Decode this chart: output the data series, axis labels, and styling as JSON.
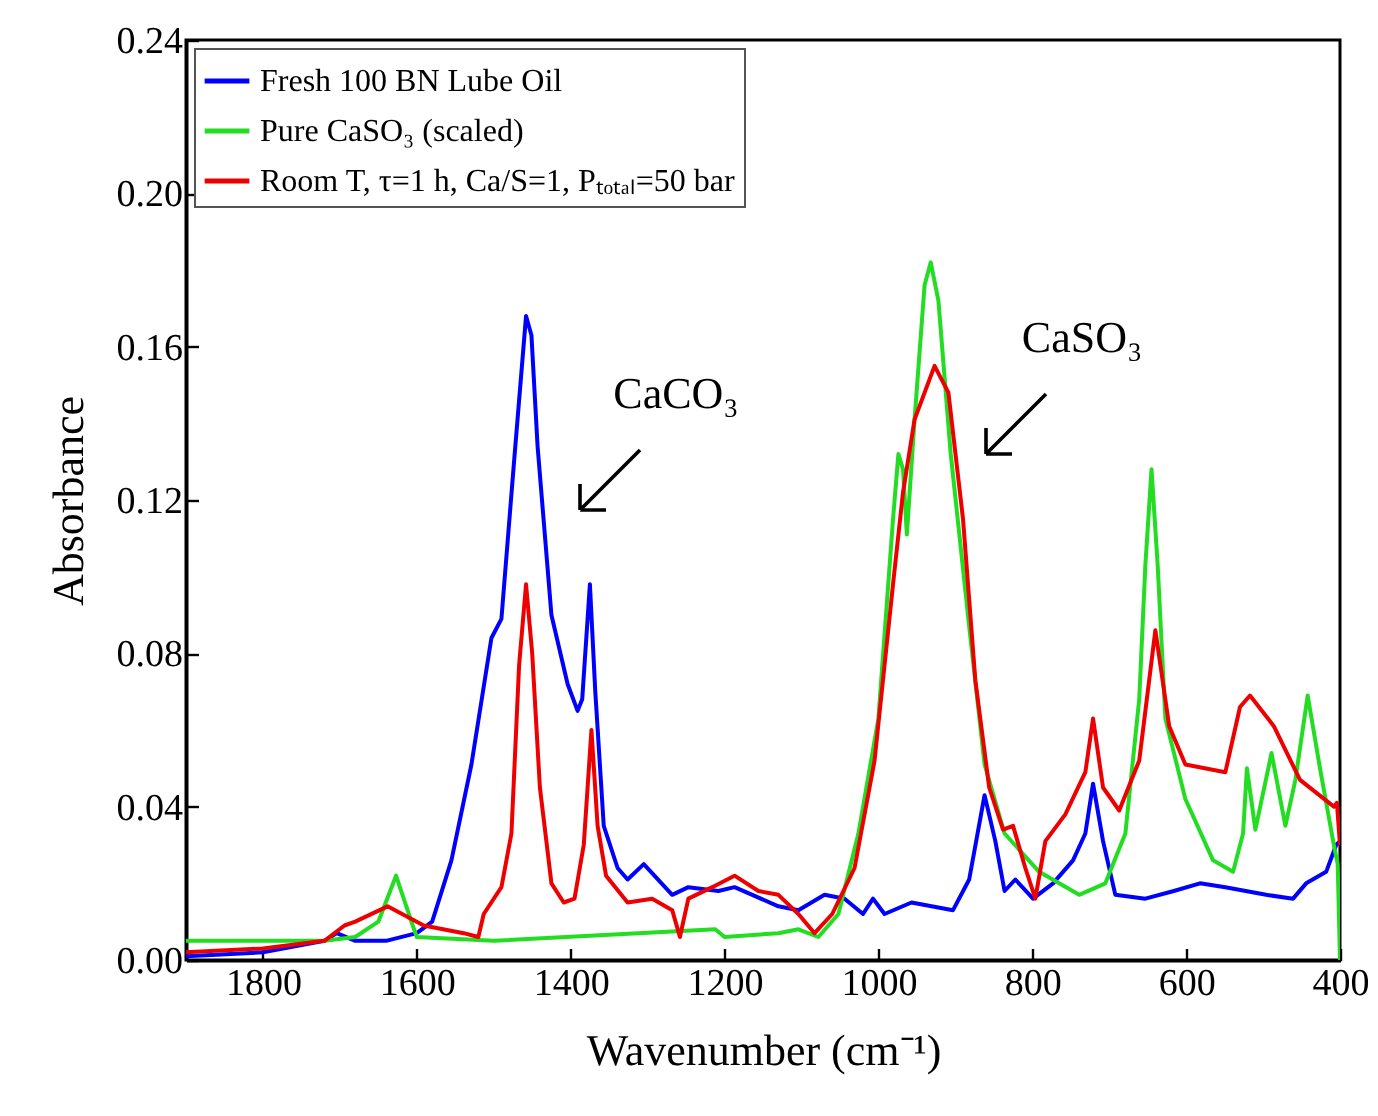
{
  "chart_data": {
    "type": "line",
    "xlabel": "Wavenumber (cm⁻¹)",
    "ylabel": "Absorbance",
    "xlim": [
      1900,
      400
    ],
    "xticks": [
      {
        "value": 1800,
        "label": "1800"
      },
      {
        "value": 1600,
        "label": "1600"
      },
      {
        "value": 1400,
        "label": "1400"
      },
      {
        "value": 1200,
        "label": "1200"
      },
      {
        "value": 1000,
        "label": "1000"
      },
      {
        "value": 800,
        "label": "800"
      },
      {
        "value": 600,
        "label": "600"
      },
      {
        "value": 400,
        "label": "400"
      }
    ],
    "ylim": [
      0,
      0.24
    ],
    "yticks": [
      {
        "value": 0,
        "label": "0.00"
      },
      {
        "value": 0.04,
        "label": "0.04"
      },
      {
        "value": 0.08,
        "label": "0.08"
      },
      {
        "value": 0.12,
        "label": "0.12"
      },
      {
        "value": 0.16,
        "label": "0.16"
      },
      {
        "value": 0.2,
        "label": "0.20"
      },
      {
        "value": 0.24,
        "label": "0.24"
      }
    ],
    "grid": false,
    "legend": "top left",
    "annotations": [
      "CaCO₃",
      "CaSO₃"
    ],
    "series": [
      {
        "name": "Fresh 100 BN Lube Oil",
        "color": "#0000ff",
        "x": [
          1900,
          1800,
          1720,
          1704,
          1680,
          1640,
          1600,
          1580,
          1555,
          1529,
          1503,
          1490,
          1474,
          1458,
          1451,
          1443,
          1425,
          1404,
          1391,
          1385,
          1375,
          1368,
          1357,
          1339,
          1326,
          1305,
          1268,
          1247,
          1208,
          1187,
          1130,
          1104,
          1070,
          1044,
          1020,
          1007,
          992,
          957,
          903,
          882,
          862,
          848,
          836,
          822,
          799,
          773,
          747,
          731,
          721,
          708,
          692,
          653,
          616,
          582,
          549,
          496,
          461,
          444,
          418,
          405,
          400
        ],
        "values": [
          0.001,
          0.002,
          0.005,
          0.007,
          0.005,
          0.005,
          0.007,
          0.01,
          0.026,
          0.051,
          0.084,
          0.089,
          0.129,
          0.168,
          0.163,
          0.134,
          0.09,
          0.072,
          0.065,
          0.068,
          0.098,
          0.07,
          0.035,
          0.024,
          0.021,
          0.025,
          0.017,
          0.019,
          0.018,
          0.019,
          0.014,
          0.013,
          0.017,
          0.016,
          0.012,
          0.016,
          0.012,
          0.015,
          0.013,
          0.021,
          0.043,
          0.031,
          0.018,
          0.021,
          0.016,
          0.02,
          0.026,
          0.033,
          0.046,
          0.031,
          0.017,
          0.016,
          0.018,
          0.02,
          0.019,
          0.017,
          0.016,
          0.02,
          0.023,
          0.03,
          0.031
        ]
      },
      {
        "name": "Pure CaSO₃ (scaled)",
        "color": "#22dd22",
        "x": [
          1900,
          1720,
          1680,
          1650,
          1627,
          1607,
          1600,
          1500,
          1212,
          1200,
          1130,
          1104,
          1078,
          1052,
          1026,
          1000,
          981,
          974,
          968,
          963,
          953,
          940,
          932,
          922,
          906,
          882,
          862,
          836,
          791,
          739,
          705,
          679,
          661,
          653,
          645,
          637,
          627,
          601,
          565,
          539,
          526,
          521,
          510,
          489,
          471,
          458,
          442,
          426,
          408,
          403,
          400
        ],
        "values": [
          0.005,
          0.005,
          0.006,
          0.01,
          0.022,
          0.01,
          0.006,
          0.005,
          0.008,
          0.006,
          0.007,
          0.008,
          0.006,
          0.012,
          0.033,
          0.063,
          0.115,
          0.132,
          0.128,
          0.111,
          0.141,
          0.176,
          0.182,
          0.172,
          0.132,
          0.087,
          0.051,
          0.033,
          0.023,
          0.017,
          0.02,
          0.033,
          0.068,
          0.103,
          0.128,
          0.103,
          0.063,
          0.042,
          0.026,
          0.023,
          0.033,
          0.05,
          0.034,
          0.054,
          0.035,
          0.047,
          0.069,
          0.05,
          0.03,
          0.025,
          0
        ]
      },
      {
        "name": "Room T, τ=1 h, Ca/S=1, Pₜₒₜₐₗ=50 bar",
        "color": "#ee0000",
        "x": [
          1900,
          1800,
          1720,
          1694,
          1680,
          1638,
          1591,
          1539,
          1520,
          1513,
          1490,
          1477,
          1467,
          1458,
          1450,
          1440,
          1425,
          1409,
          1395,
          1383,
          1373,
          1365,
          1354,
          1326,
          1294,
          1268,
          1258,
          1247,
          1216,
          1187,
          1156,
          1130,
          1104,
          1083,
          1060,
          1031,
          1005,
          981,
          968,
          953,
          927,
          909,
          890,
          874,
          856,
          838,
          825,
          809,
          796,
          783,
          757,
          731,
          721,
          708,
          687,
          661,
          640,
          622,
          601,
          549,
          530,
          517,
          486,
          452,
          408,
          404,
          400
        ],
        "values": [
          0.002,
          0.003,
          0.005,
          0.009,
          0.01,
          0.014,
          0.009,
          0.007,
          0.006,
          0.012,
          0.019,
          0.033,
          0.077,
          0.098,
          0.08,
          0.045,
          0.02,
          0.015,
          0.016,
          0.03,
          0.06,
          0.035,
          0.022,
          0.015,
          0.016,
          0.013,
          0.006,
          0.016,
          0.019,
          0.022,
          0.018,
          0.017,
          0.012,
          0.007,
          0.012,
          0.024,
          0.052,
          0.098,
          0.122,
          0.141,
          0.155,
          0.148,
          0.115,
          0.073,
          0.045,
          0.034,
          0.035,
          0.024,
          0.016,
          0.031,
          0.038,
          0.049,
          0.063,
          0.045,
          0.039,
          0.052,
          0.086,
          0.061,
          0.051,
          0.049,
          0.066,
          0.069,
          0.061,
          0.047,
          0.04,
          0.041,
          0.03
        ]
      }
    ]
  }
}
